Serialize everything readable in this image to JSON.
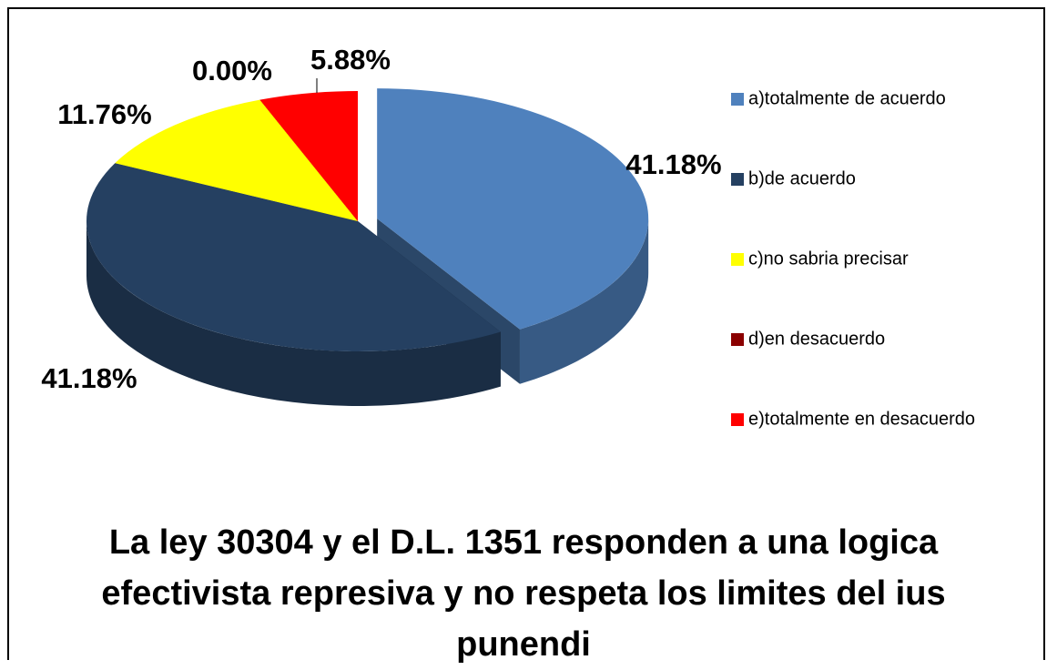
{
  "chart_data": {
    "type": "pie3d",
    "title": "La ley 30304 y el D.L. 1351 responden a una logica efectivista represiva y no respeta los limites del ius punendi",
    "categories": [
      "a)totalmente de acuerdo",
      "b)de acuerdo",
      "c)no sabria precisar",
      "d)en desacuerdo",
      "e)totalmente en desacuerdo"
    ],
    "values": [
      41.18,
      41.18,
      11.76,
      0,
      5.88
    ],
    "value_labels": [
      "41.18%",
      "41.18%",
      "11.76%",
      "0.00%",
      "5.88%"
    ],
    "colors": [
      "#4f81bd",
      "#254061",
      "#ffff00",
      "#8b0000",
      "#ff0000"
    ],
    "legend": "right"
  }
}
